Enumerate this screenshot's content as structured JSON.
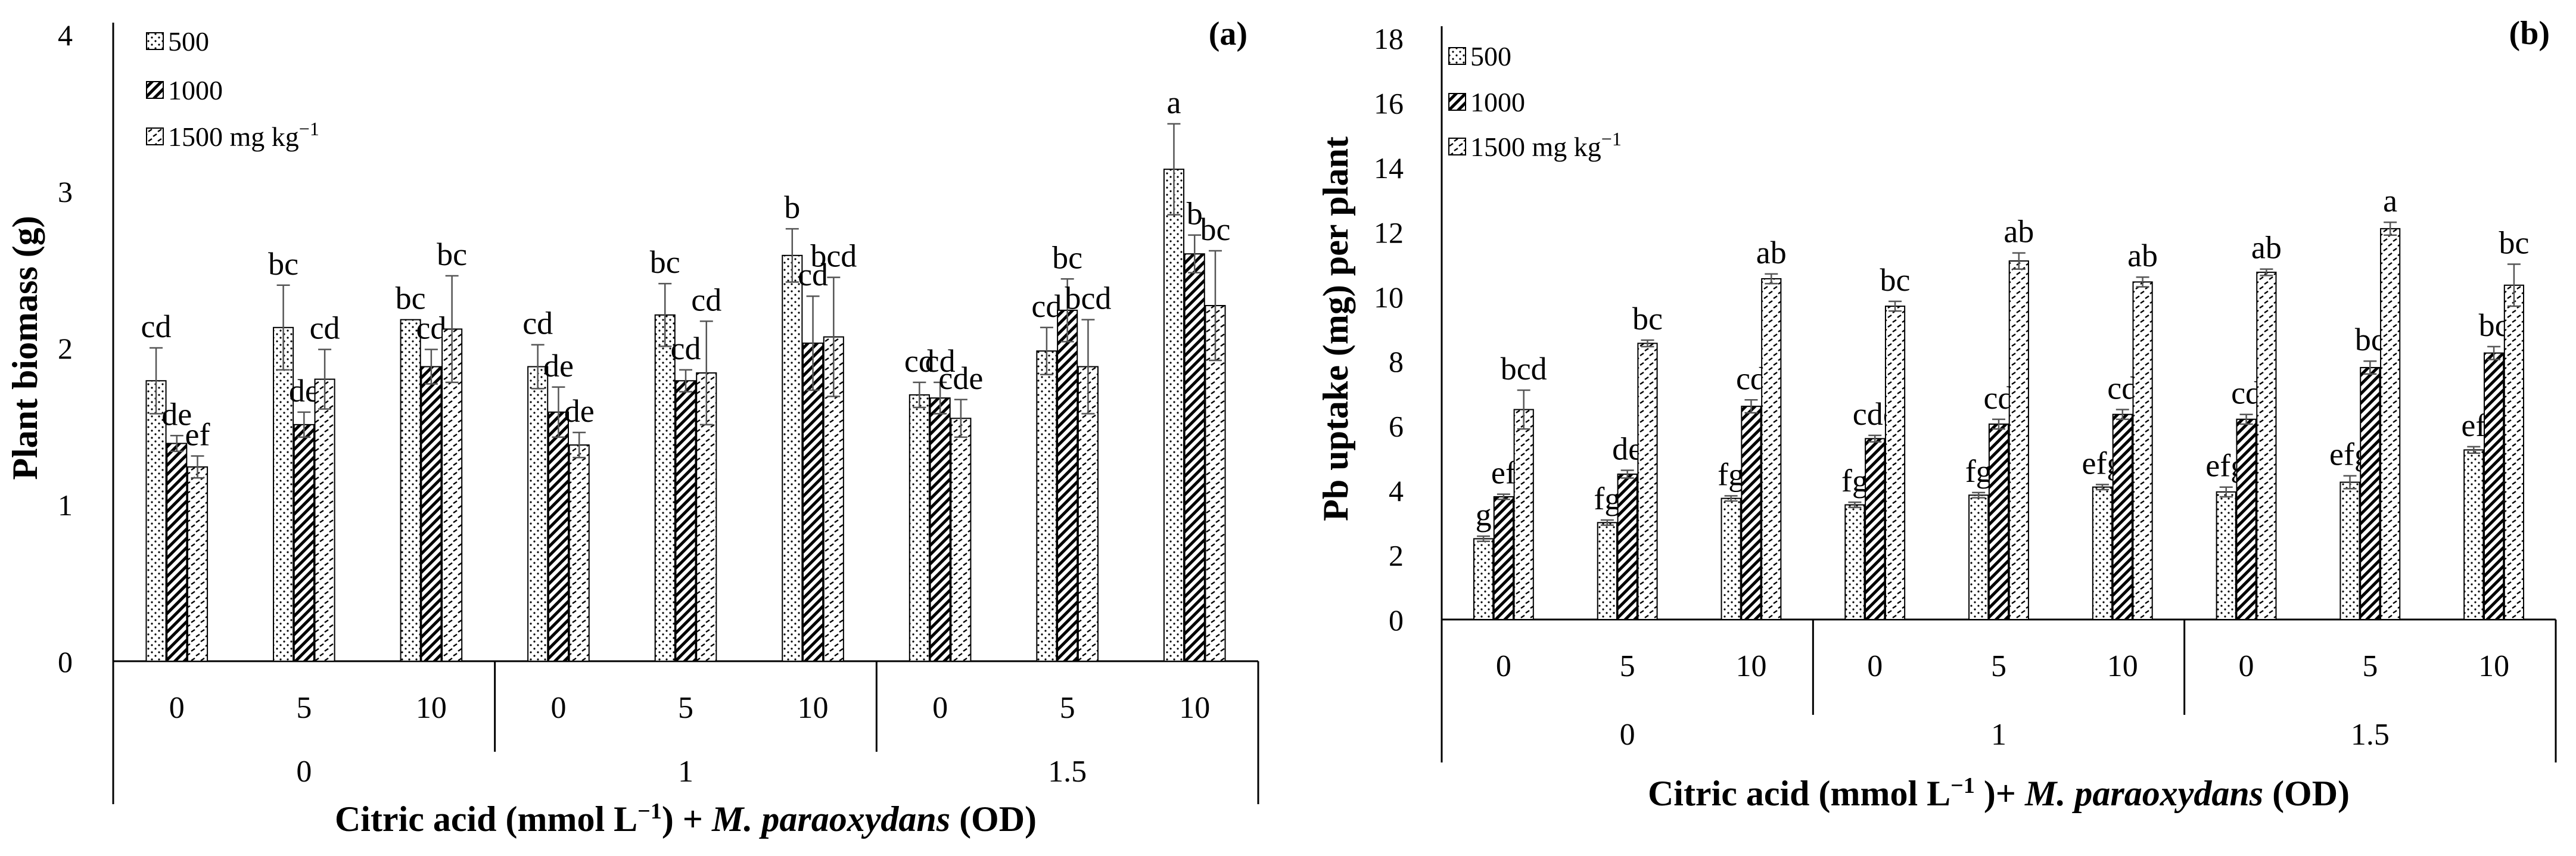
{
  "chart_data": [
    {
      "type": "bar",
      "panel_label": "(a)",
      "ylabel": "Plant biomass (g)",
      "xlabel_parts": [
        "Citric acid (mmol L",
        "−1",
        ") + ",
        "M. paraoxydans",
        " (OD)"
      ],
      "ylim": [
        0,
        4
      ],
      "yticks": [
        "0",
        "1",
        "2",
        "3",
        "4"
      ],
      "legend": {
        "placement": "top-left",
        "entries": [
          "500",
          "1000",
          "1500 mg kg",
          "−1"
        ]
      },
      "outer_groups": [
        "0",
        "1",
        "1.5"
      ],
      "inner_categories": [
        "0",
        "5",
        "10",
        "0",
        "5",
        "10",
        "0",
        "5",
        "10"
      ],
      "series": [
        {
          "name": "500",
          "values": [
            1.79,
            2.13,
            2.18,
            1.88,
            2.21,
            2.59,
            1.7,
            1.98,
            3.14
          ],
          "errors": [
            0.21,
            0.27,
            0.0,
            0.14,
            0.2,
            0.17,
            0.08,
            0.15,
            0.29
          ],
          "letters": [
            "cd",
            "bc",
            "bc",
            "cd",
            "bc",
            "b",
            "cd",
            "cd",
            "a"
          ]
        },
        {
          "name": "1000",
          "values": [
            1.39,
            1.51,
            1.88,
            1.59,
            1.79,
            2.03,
            1.68,
            2.24,
            2.6
          ],
          "errors": [
            0.05,
            0.08,
            0.11,
            0.16,
            0.07,
            0.3,
            0.1,
            0.2,
            0.12
          ],
          "letters": [
            "de",
            "de",
            "cd",
            "de",
            "cd",
            "cd",
            "cd",
            "bc",
            "b"
          ]
        },
        {
          "name": "1500 mg kg−1",
          "values": [
            1.24,
            1.8,
            2.12,
            1.38,
            1.84,
            2.07,
            1.55,
            1.88,
            2.27
          ],
          "errors": [
            0.07,
            0.19,
            0.34,
            0.08,
            0.33,
            0.38,
            0.12,
            0.3,
            0.35
          ],
          "letters": [
            "ef",
            "cd",
            "bc",
            "de",
            "cd",
            "bcd",
            "cde",
            "bcd",
            "bc"
          ]
        }
      ]
    },
    {
      "type": "bar",
      "panel_label": "(b)",
      "ylabel": "Pb uptake (mg) per plant",
      "xlabel_parts": [
        "Citric acid (mmol L",
        "−1",
        " )+ ",
        "M. paraoxydans",
        " (OD)"
      ],
      "ylim": [
        0,
        18
      ],
      "yticks": [
        "0",
        "2",
        "4",
        "6",
        "8",
        "10",
        "12",
        "14",
        "16",
        "18"
      ],
      "legend": {
        "placement": "top-left",
        "entries": [
          "500",
          "1000",
          "1500 mg kg",
          "−1"
        ]
      },
      "outer_groups": [
        "0",
        "1",
        "1.5"
      ],
      "inner_categories": [
        "0",
        "5",
        "10",
        "0",
        "5",
        "10",
        "0",
        "5",
        "10"
      ],
      "series": [
        {
          "name": "500",
          "values": [
            2.5,
            3.0,
            3.75,
            3.55,
            3.85,
            4.1,
            3.95,
            4.25,
            5.25
          ],
          "errors": [
            0.08,
            0.08,
            0.08,
            0.08,
            0.08,
            0.08,
            0.15,
            0.2,
            0.1
          ],
          "letters": [
            "g",
            "fg",
            "fg",
            "fg",
            "fg",
            "efg",
            "efg",
            "efg",
            "ef"
          ]
        },
        {
          "name": "1000",
          "values": [
            3.8,
            4.5,
            6.6,
            5.6,
            6.05,
            6.35,
            6.2,
            7.8,
            8.25
          ],
          "errors": [
            0.08,
            0.12,
            0.2,
            0.1,
            0.15,
            0.15,
            0.15,
            0.2,
            0.2
          ],
          "letters": [
            "ef",
            "de",
            "cd",
            "cde",
            "cd",
            "cd",
            "cd",
            "bc",
            "bc"
          ]
        },
        {
          "name": "1500 mg kg−1",
          "values": [
            6.5,
            8.55,
            10.55,
            9.7,
            11.1,
            10.45,
            10.75,
            12.1,
            10.35
          ],
          "errors": [
            0.6,
            0.1,
            0.15,
            0.15,
            0.25,
            0.15,
            0.1,
            0.2,
            0.65
          ],
          "letters": [
            "bcd",
            "bc",
            "ab",
            "bc",
            "ab",
            "ab",
            "ab",
            "a",
            "bc"
          ]
        }
      ]
    }
  ]
}
